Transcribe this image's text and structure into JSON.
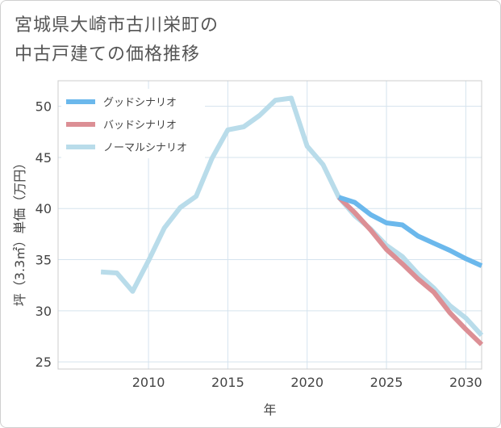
{
  "page": {
    "title": "宮城県大崎市古川栄町の\n中古戸建ての価格推移"
  },
  "chart_data": {
    "type": "line",
    "title": "宮城県大崎市古川栄町の中古戸建ての価格推移",
    "xlabel": "年",
    "ylabel": "坪（3.3㎡）単価（万円）",
    "xlim": [
      2004.3,
      2031
    ],
    "ylim": [
      24.3,
      52.5
    ],
    "xticks": [
      2010,
      2015,
      2020,
      2025,
      2030
    ],
    "yticks": [
      25,
      30,
      35,
      40,
      45,
      50
    ],
    "grid": true,
    "legend_position": "top-left",
    "series": [
      {
        "name": "グッドシナリオ",
        "color": "#6bb8ec",
        "x": [
          2022,
          2023,
          2024,
          2025,
          2026,
          2027,
          2028,
          2029,
          2030,
          2031
        ],
        "y": [
          41.1,
          40.6,
          39.4,
          38.6,
          38.4,
          37.3,
          36.6,
          35.9,
          35.1,
          34.4
        ]
      },
      {
        "name": "バッドシナリオ",
        "color": "#dc8f95",
        "x": [
          2022,
          2023,
          2024,
          2025,
          2026,
          2027,
          2028,
          2029,
          2030,
          2031
        ],
        "y": [
          41.1,
          39.6,
          37.9,
          36.0,
          34.6,
          33.1,
          31.8,
          29.8,
          28.2,
          26.7
        ]
      },
      {
        "name": "ノーマルシナリオ",
        "color": "#b9dcea",
        "x": [
          2007,
          2008,
          2009,
          2010,
          2011,
          2012,
          2013,
          2014,
          2015,
          2016,
          2017,
          2018,
          2019,
          2020,
          2021,
          2022,
          2023,
          2024,
          2025,
          2026,
          2027,
          2028,
          2029,
          2030,
          2031
        ],
        "y": [
          33.8,
          33.7,
          31.9,
          34.9,
          38.1,
          40.1,
          41.2,
          44.9,
          47.7,
          48.0,
          49.1,
          50.6,
          50.8,
          46.1,
          44.3,
          41.1,
          39.3,
          38.0,
          36.4,
          35.3,
          33.6,
          32.2,
          30.5,
          29.3,
          27.6
        ]
      }
    ]
  }
}
